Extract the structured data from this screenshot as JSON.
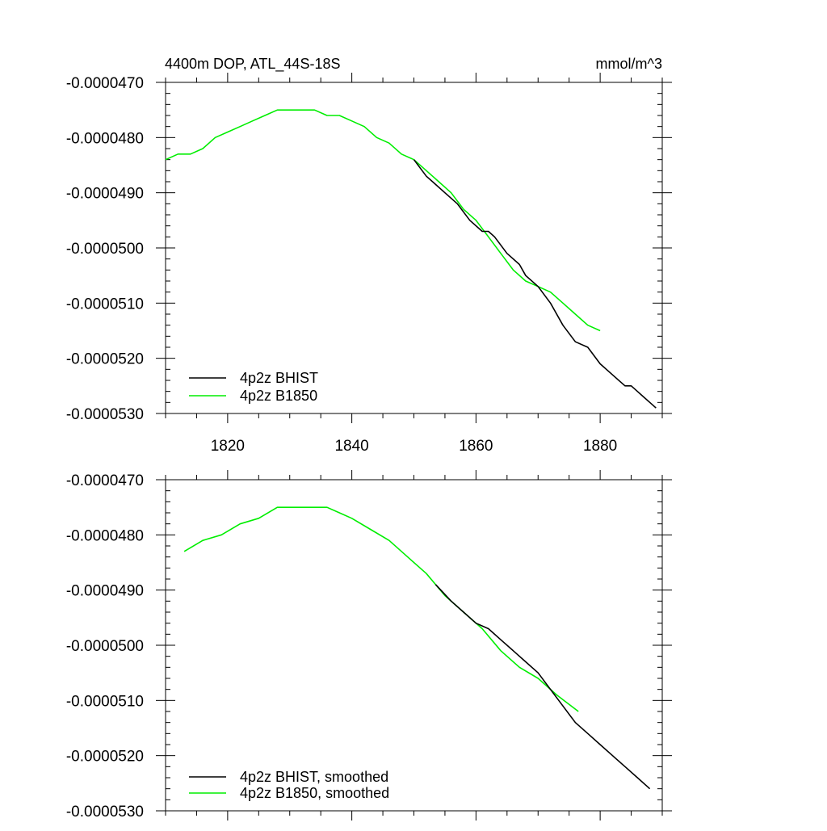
{
  "chart_data": [
    {
      "type": "line",
      "title": "4400m DOP, ATL_44S-18S",
      "units_label": "mmol/m^3",
      "xlabel": "",
      "ylabel": "",
      "xlim": [
        1810,
        1890
      ],
      "ylim": [
        -5.3e-05,
        -4.7e-05
      ],
      "x_ticks": [
        1820,
        1840,
        1860,
        1880
      ],
      "x_tick_labels": [
        "1820",
        "1840",
        "1860",
        "1880"
      ],
      "y_ticks": [
        -5.3e-05,
        -5.2e-05,
        -5.1e-05,
        -5e-05,
        -4.9e-05,
        -4.8e-05,
        -4.7e-05
      ],
      "y_tick_labels": [
        "-0.0000530",
        "-0.0000520",
        "-0.0000510",
        "-0.0000500",
        "-0.0000490",
        "-0.0000480",
        "-0.0000470"
      ],
      "grid": false,
      "legend_position": "bottom-left",
      "series": [
        {
          "name": "4p2z BHIST",
          "color": "#000000",
          "x": [
            1850,
            1852,
            1853,
            1855,
            1857,
            1859,
            1861,
            1862,
            1863,
            1865,
            1867,
            1868,
            1870,
            1872,
            1874,
            1876,
            1878,
            1880,
            1882,
            1884,
            1885,
            1886,
            1887,
            1888,
            1889
          ],
          "y": [
            -4.84e-05,
            -4.87e-05,
            -4.88e-05,
            -4.9e-05,
            -4.92e-05,
            -4.95e-05,
            -4.97e-05,
            -4.97e-05,
            -4.98e-05,
            -5.01e-05,
            -5.03e-05,
            -5.05e-05,
            -5.07e-05,
            -5.1e-05,
            -5.14e-05,
            -5.17e-05,
            -5.18e-05,
            -5.21e-05,
            -5.23e-05,
            -5.25e-05,
            -5.25e-05,
            -5.26e-05,
            -5.27e-05,
            -5.28e-05,
            -5.29e-05
          ]
        },
        {
          "name": "4p2z B1850",
          "color": "#00ee00",
          "x": [
            1810,
            1812,
            1814,
            1816,
            1818,
            1820,
            1822,
            1824,
            1826,
            1828,
            1830,
            1832,
            1834,
            1836,
            1838,
            1840,
            1842,
            1844,
            1846,
            1848,
            1850,
            1852,
            1854,
            1856,
            1858,
            1860,
            1862,
            1864,
            1866,
            1868,
            1870,
            1872,
            1874,
            1876,
            1878,
            1880
          ],
          "y": [
            -4.84e-05,
            -4.83e-05,
            -4.83e-05,
            -4.82e-05,
            -4.8e-05,
            -4.79e-05,
            -4.78e-05,
            -4.77e-05,
            -4.76e-05,
            -4.75e-05,
            -4.75e-05,
            -4.75e-05,
            -4.75e-05,
            -4.76e-05,
            -4.76e-05,
            -4.77e-05,
            -4.78e-05,
            -4.8e-05,
            -4.81e-05,
            -4.83e-05,
            -4.84e-05,
            -4.86e-05,
            -4.88e-05,
            -4.9e-05,
            -4.93e-05,
            -4.95e-05,
            -4.98e-05,
            -5.01e-05,
            -5.04e-05,
            -5.06e-05,
            -5.07e-05,
            -5.08e-05,
            -5.1e-05,
            -5.12e-05,
            -5.14e-05,
            -5.15e-05
          ]
        }
      ]
    },
    {
      "type": "line",
      "title": "",
      "xlabel": "",
      "ylabel": "",
      "xlim": [
        1810,
        1890
      ],
      "ylim": [
        -5.3e-05,
        -4.7e-05
      ],
      "x_ticks": [
        1820,
        1840,
        1860,
        1880
      ],
      "x_tick_labels": [],
      "y_ticks": [
        -5.3e-05,
        -5.2e-05,
        -5.1e-05,
        -5e-05,
        -4.9e-05,
        -4.8e-05,
        -4.7e-05
      ],
      "y_tick_labels": [
        "-0.0000530",
        "-0.0000520",
        "-0.0000510",
        "-0.0000500",
        "-0.0000490",
        "-0.0000480",
        "-0.0000470"
      ],
      "grid": false,
      "legend_position": "bottom-left",
      "series": [
        {
          "name": "4p2z BHIST, smoothed",
          "color": "#000000",
          "x": [
            1853.5,
            1856,
            1858,
            1860,
            1862,
            1864,
            1866,
            1868,
            1870,
            1872,
            1874,
            1876,
            1878,
            1880,
            1882,
            1884,
            1886,
            1888
          ],
          "y": [
            -4.89e-05,
            -4.92e-05,
            -4.94e-05,
            -4.96e-05,
            -4.97e-05,
            -4.99e-05,
            -5.01e-05,
            -5.03e-05,
            -5.05e-05,
            -5.08e-05,
            -5.11e-05,
            -5.14e-05,
            -5.16e-05,
            -5.18e-05,
            -5.2e-05,
            -5.22e-05,
            -5.24e-05,
            -5.26e-05
          ]
        },
        {
          "name": "4p2z B1850, smoothed",
          "color": "#00ee00",
          "x": [
            1813,
            1816,
            1819,
            1822,
            1825,
            1828,
            1830,
            1832,
            1834,
            1836,
            1838,
            1840,
            1843,
            1846,
            1849,
            1852,
            1855,
            1858,
            1861,
            1864,
            1867,
            1870,
            1873,
            1876.5
          ],
          "y": [
            -4.83e-05,
            -4.81e-05,
            -4.8e-05,
            -4.78e-05,
            -4.77e-05,
            -4.75e-05,
            -4.75e-05,
            -4.75e-05,
            -4.75e-05,
            -4.75e-05,
            -4.76e-05,
            -4.77e-05,
            -4.79e-05,
            -4.81e-05,
            -4.84e-05,
            -4.87e-05,
            -4.91e-05,
            -4.94e-05,
            -4.97e-05,
            -5.01e-05,
            -5.04e-05,
            -5.06e-05,
            -5.09e-05,
            -5.12e-05
          ]
        }
      ]
    }
  ]
}
